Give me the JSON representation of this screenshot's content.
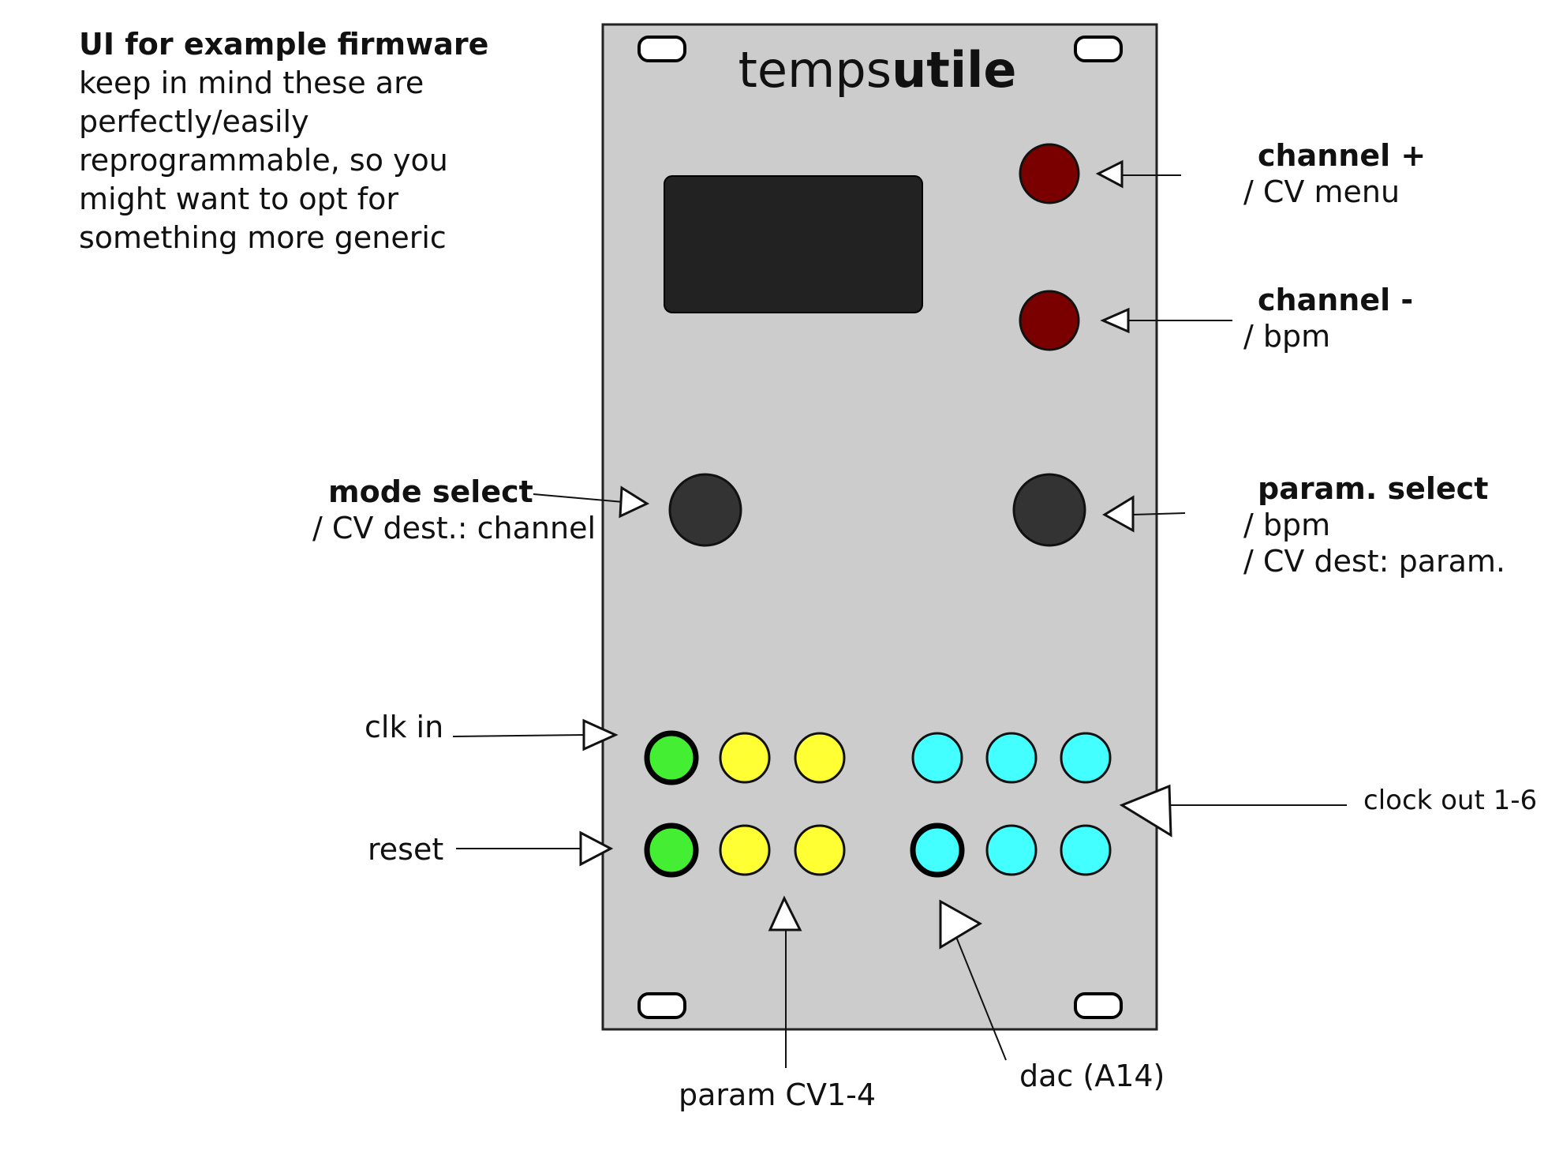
{
  "note": {
    "heading": "UI for example firmware",
    "lines": [
      "keep in mind these are",
      "perfectly/easily",
      "reprogrammable, so you",
      "might want to opt for",
      "something more generic"
    ]
  },
  "panel": {
    "title_light": "temps",
    "title_bold": "utile"
  },
  "labels": {
    "channel_plus": {
      "title": "channel +",
      "sub": "/ CV menu"
    },
    "channel_minus": {
      "title": "channel -",
      "sub": "/ bpm"
    },
    "mode_select": {
      "title": "mode select",
      "sub": "/ CV dest.: channel"
    },
    "param_select": {
      "title": "param. select",
      "sub1": "/ bpm",
      "sub2": "/ CV dest: param."
    },
    "clk_in": "clk in",
    "reset": "reset",
    "clock_out": "clock out 1-6",
    "param_cv": "param CV1-4",
    "dac": "dac (A14)"
  },
  "colors": {
    "panel": "#cccccc",
    "display": "#222222",
    "button_red": "#7a0000",
    "knob": "#333333",
    "jack_green": "#44ee33",
    "jack_yellow": "#ffff33",
    "jack_cyan": "#44ffff"
  }
}
